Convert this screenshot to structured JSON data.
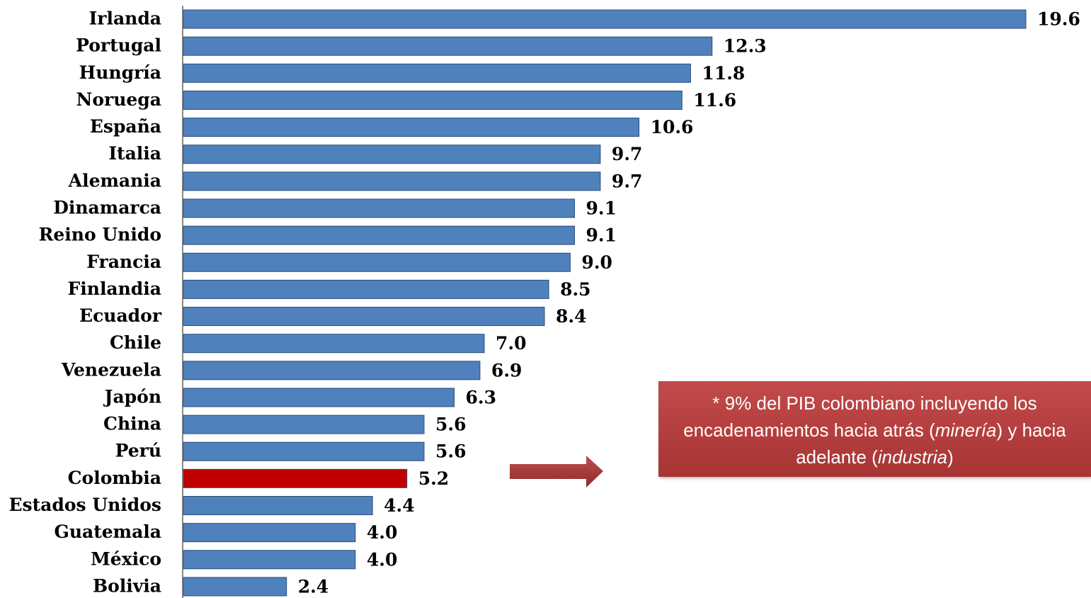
{
  "chart_data": {
    "type": "hbar",
    "categories": [
      "Irlanda",
      "Portugal",
      "Hungría",
      "Noruega",
      "España",
      "Italia",
      "Alemania",
      "Dinamarca",
      "Reino Unido",
      "Francia",
      "Finlandia",
      "Ecuador",
      "Chile",
      "Venezuela",
      "Japón",
      "China",
      "Perú",
      "Colombia",
      "Estados Unidos",
      "Guatemala",
      "México",
      "Bolivia"
    ],
    "values": [
      19.6,
      12.3,
      11.8,
      11.6,
      10.6,
      9.7,
      9.7,
      9.1,
      9.1,
      9.0,
      8.5,
      8.4,
      7.0,
      6.9,
      6.3,
      5.6,
      5.6,
      5.2,
      4.4,
      4.0,
      4.0,
      2.4
    ],
    "value_labels": [
      "19.6",
      "12.3",
      "11.8",
      "11.6",
      "10.6",
      "9.7",
      "9.7",
      "9.1",
      "9.1",
      "9.0",
      "8.5",
      "8.4",
      "7.0",
      "6.9",
      "6.3",
      "5.6",
      "5.6",
      "5.2",
      "4.4",
      "4.0",
      "4.0",
      "2.4"
    ],
    "colors": [
      "#4f81bd",
      "#4f81bd",
      "#4f81bd",
      "#4f81bd",
      "#4f81bd",
      "#4f81bd",
      "#4f81bd",
      "#4f81bd",
      "#4f81bd",
      "#4f81bd",
      "#4f81bd",
      "#4f81bd",
      "#4f81bd",
      "#4f81bd",
      "#4f81bd",
      "#4f81bd",
      "#4f81bd",
      "#c00000",
      "#4f81bd",
      "#4f81bd",
      "#4f81bd",
      "#4f81bd"
    ],
    "annotation": [
      "* 9% del PIB colombiano incluyendo los encadenamientos hacia atrás (",
      "minería",
      ") y hacia adelante (",
      "industria",
      ")"
    ]
  }
}
